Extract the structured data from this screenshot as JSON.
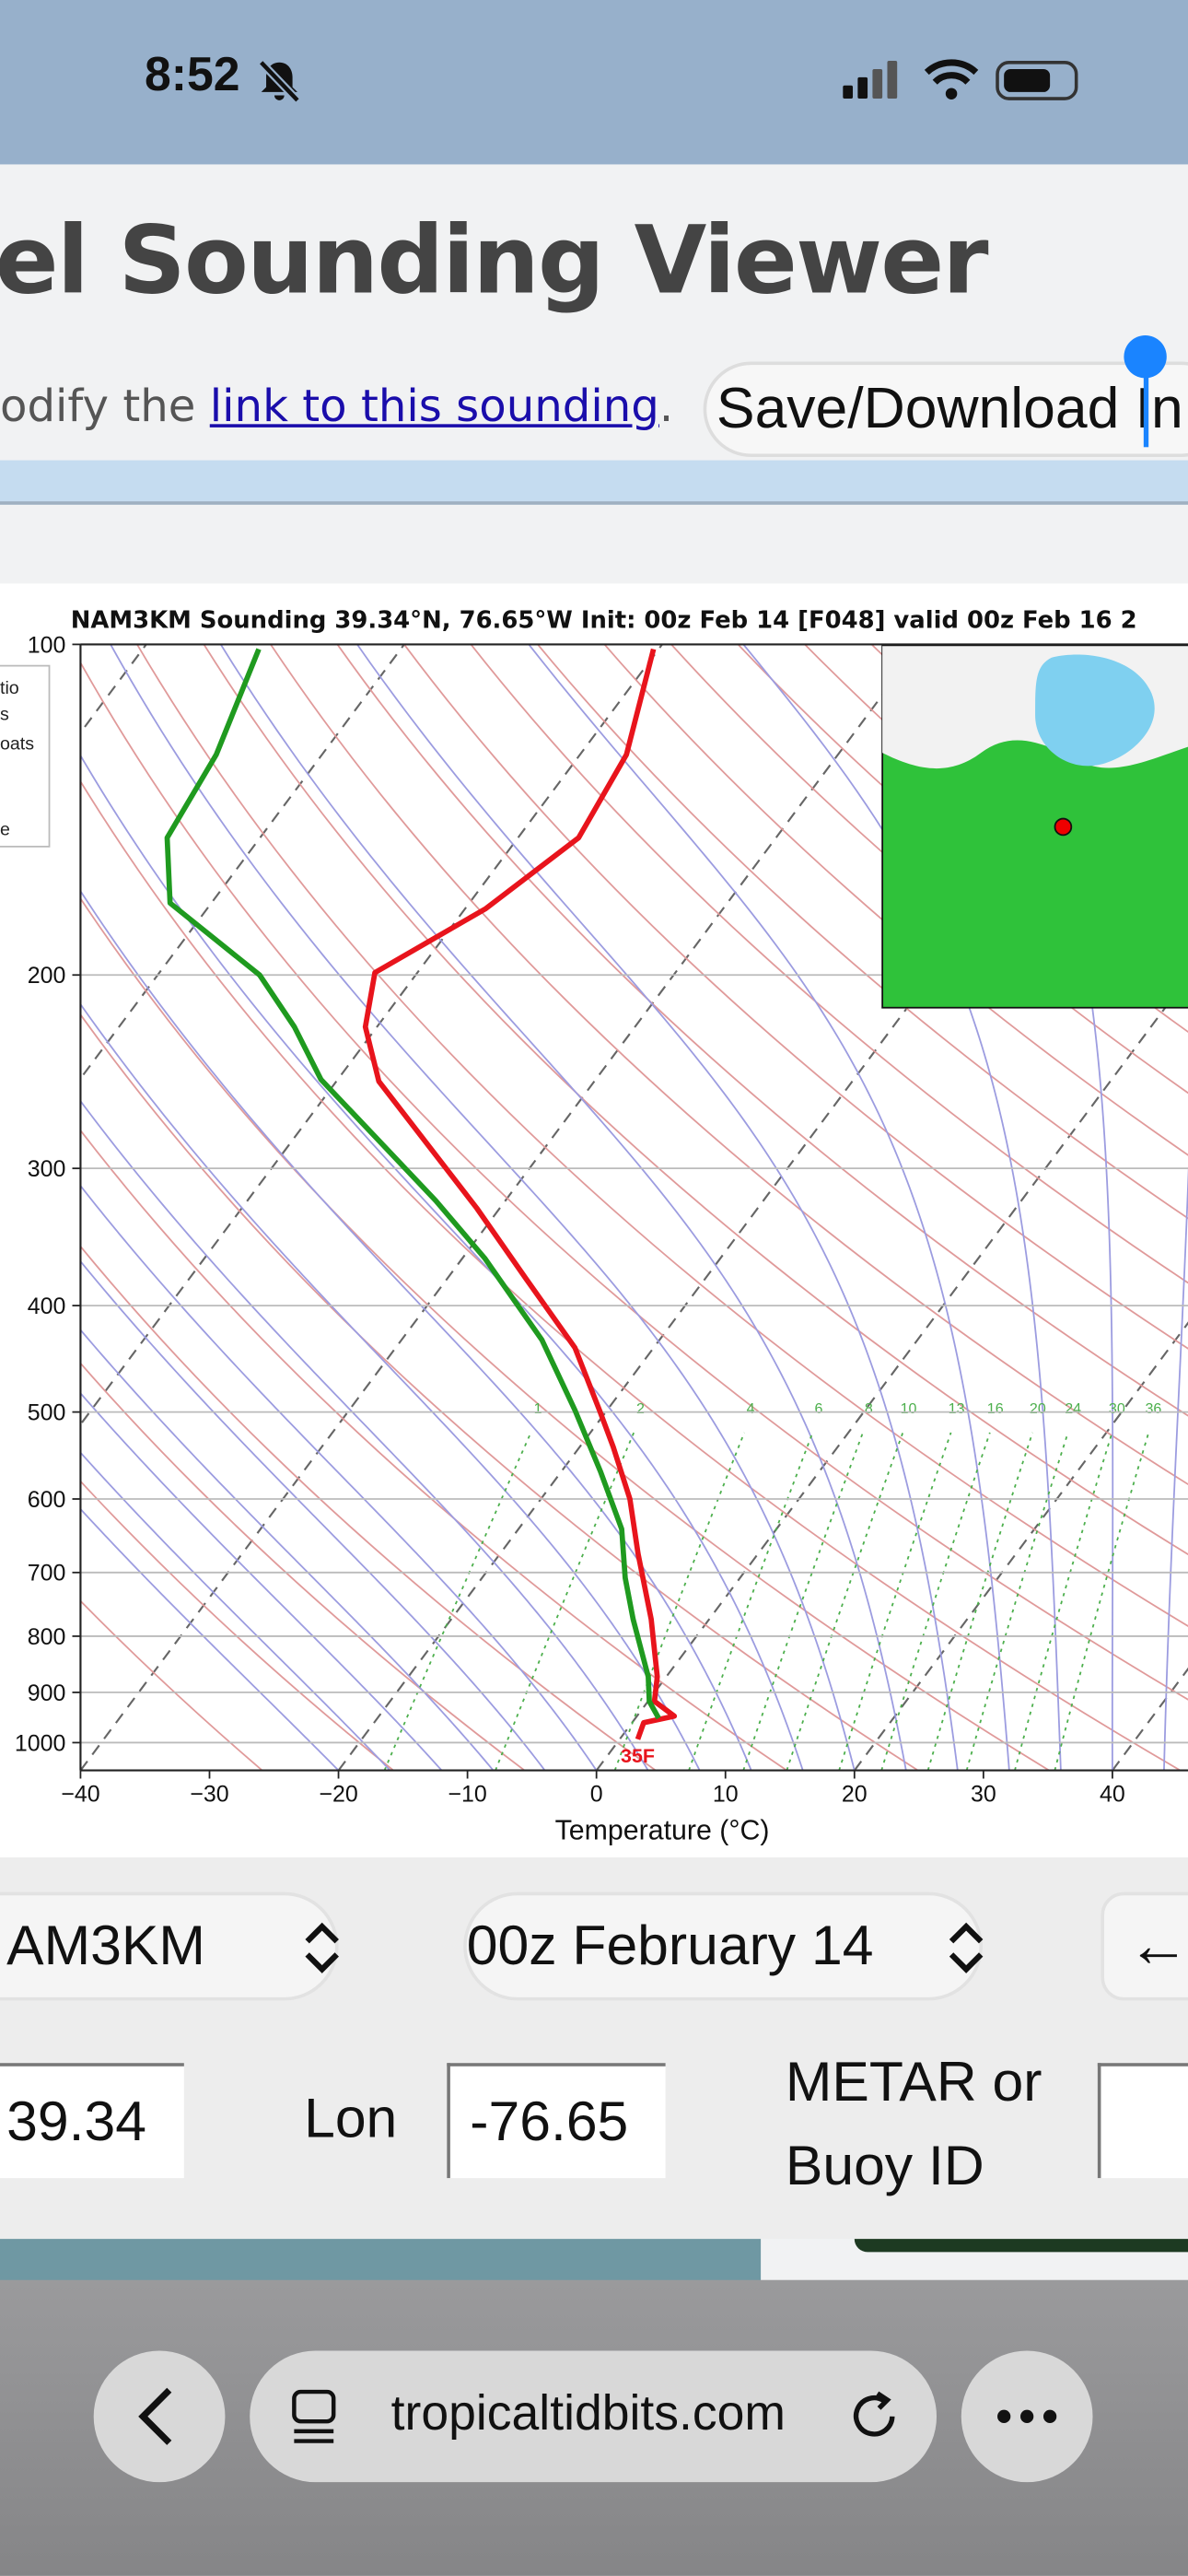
{
  "status_bar": {
    "time": "8:52"
  },
  "header": {
    "title": "el Sounding Viewer"
  },
  "intro": {
    "text_before": "odify the ",
    "link": "link to this sounding",
    "text_after": "."
  },
  "save_button": "Save/Download In",
  "chart_data": {
    "type": "skewt",
    "title": "NAM3KM Sounding 39.34°N, 76.65°W Init: 00z Feb 14 [F048] valid 00z Feb 16 2",
    "x_label": "Temperature (°C)",
    "xlim": [
      -40,
      50
    ],
    "xticks": [
      {
        "value": -40,
        "label": "−40"
      },
      {
        "value": -30,
        "label": "−30"
      },
      {
        "value": -20,
        "label": "−20"
      },
      {
        "value": -10,
        "label": "−10"
      },
      0,
      10,
      20,
      30,
      40
    ],
    "ylim": [
      1060,
      100
    ],
    "yticks": [
      100,
      200,
      300,
      400,
      500,
      600,
      700,
      800,
      900,
      1000
    ],
    "log_y": true,
    "series": [
      {
        "color": "#e8141c",
        "pressure": [
          993,
          959,
          946,
          917,
          871,
          772,
          673,
          600,
          538,
          498,
          437,
          378,
          326,
          250,
          223,
          199,
          174,
          150,
          126,
          101
        ],
        "values": [
          1.4,
          0.9,
          2.9,
          0.5,
          -0.7,
          -4.5,
          -9.3,
          -13.1,
          -17.4,
          -20.6,
          -26.1,
          -33.9,
          -41.8,
          -56.7,
          -60.9,
          -63.3,
          -58.4,
          -55.3,
          -56.4,
          -60.4
        ]
      },
      {
        "color": "#1f9a1f",
        "pressure": [
          950,
          917,
          871,
          772,
          708,
          639,
          566,
          498,
          430,
          362,
          321,
          249,
          223,
          200,
          172,
          150,
          126,
          101
        ],
        "values": [
          1.8,
          0.1,
          -1.4,
          -5.9,
          -8.9,
          -12.0,
          -17.0,
          -22.5,
          -29.1,
          -38.3,
          -45.4,
          -61.3,
          -66.4,
          -72.1,
          -83.2,
          -87.2,
          -88.2,
          -91.0
        ]
      }
    ],
    "mixing_ratios": [
      1,
      2,
      4,
      6,
      8,
      10,
      13,
      16,
      20,
      24,
      30,
      36
    ],
    "surface_label": "35F",
    "legend_fragments": [
      "tio",
      "s",
      "oats",
      "e"
    ]
  },
  "controls": {
    "model": "AM3KM",
    "init": "00z February 14",
    "back": "←",
    "lat": "39.34",
    "lon_label": "Lon",
    "lon": "-76.65",
    "station_label": [
      "METAR or",
      "Buoy ID"
    ]
  },
  "browser": {
    "url": "tropicaltidbits.com"
  }
}
